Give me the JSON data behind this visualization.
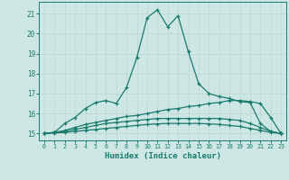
{
  "xlabel": "Humidex (Indice chaleur)",
  "bg_color": "#cde8e4",
  "line_color": "#1a7a6e",
  "grid_color": "#c0d8d4",
  "x_ticks": [
    0,
    1,
    2,
    3,
    4,
    5,
    6,
    7,
    8,
    9,
    10,
    11,
    12,
    13,
    14,
    15,
    16,
    17,
    18,
    19,
    20,
    21,
    22,
    23
  ],
  "y_ticks": [
    15,
    16,
    17,
    18,
    19,
    20,
    21
  ],
  "xlim": [
    -0.5,
    23.5
  ],
  "ylim": [
    14.65,
    21.6
  ],
  "series": [
    {
      "x": [
        0,
        1,
        2,
        3,
        4,
        5,
        6,
        7,
        8,
        9,
        10,
        11,
        12,
        13,
        14,
        15,
        16,
        17,
        18,
        19,
        20,
        21,
        22,
        23
      ],
      "y": [
        15.0,
        15.05,
        15.5,
        15.8,
        16.25,
        16.55,
        16.65,
        16.5,
        17.3,
        18.8,
        20.8,
        21.2,
        20.35,
        20.9,
        19.1,
        17.5,
        17.0,
        16.85,
        16.75,
        16.6,
        16.55,
        15.5,
        15.1,
        15.0
      ]
    },
    {
      "x": [
        0,
        1,
        2,
        3,
        4,
        5,
        6,
        7,
        8,
        9,
        10,
        11,
        12,
        13,
        14,
        15,
        16,
        17,
        18,
        19,
        20,
        21,
        22,
        23
      ],
      "y": [
        15.0,
        15.05,
        15.15,
        15.3,
        15.45,
        15.55,
        15.65,
        15.75,
        15.85,
        15.9,
        16.0,
        16.1,
        16.2,
        16.25,
        16.35,
        16.4,
        16.5,
        16.55,
        16.65,
        16.65,
        16.6,
        16.5,
        15.8,
        15.0
      ]
    },
    {
      "x": [
        0,
        1,
        2,
        3,
        4,
        5,
        6,
        7,
        8,
        9,
        10,
        11,
        12,
        13,
        14,
        15,
        16,
        17,
        18,
        19,
        20,
        21,
        22,
        23
      ],
      "y": [
        15.0,
        15.05,
        15.1,
        15.2,
        15.3,
        15.4,
        15.5,
        15.55,
        15.6,
        15.65,
        15.7,
        15.75,
        15.75,
        15.75,
        15.75,
        15.75,
        15.75,
        15.75,
        15.7,
        15.65,
        15.5,
        15.3,
        15.1,
        15.0
      ]
    },
    {
      "x": [
        0,
        1,
        2,
        3,
        4,
        5,
        6,
        7,
        8,
        9,
        10,
        11,
        12,
        13,
        14,
        15,
        16,
        17,
        18,
        19,
        20,
        21,
        22,
        23
      ],
      "y": [
        15.0,
        15.02,
        15.05,
        15.1,
        15.15,
        15.2,
        15.25,
        15.3,
        15.35,
        15.4,
        15.45,
        15.48,
        15.5,
        15.5,
        15.5,
        15.5,
        15.48,
        15.45,
        15.4,
        15.35,
        15.25,
        15.15,
        15.05,
        15.0
      ]
    }
  ]
}
